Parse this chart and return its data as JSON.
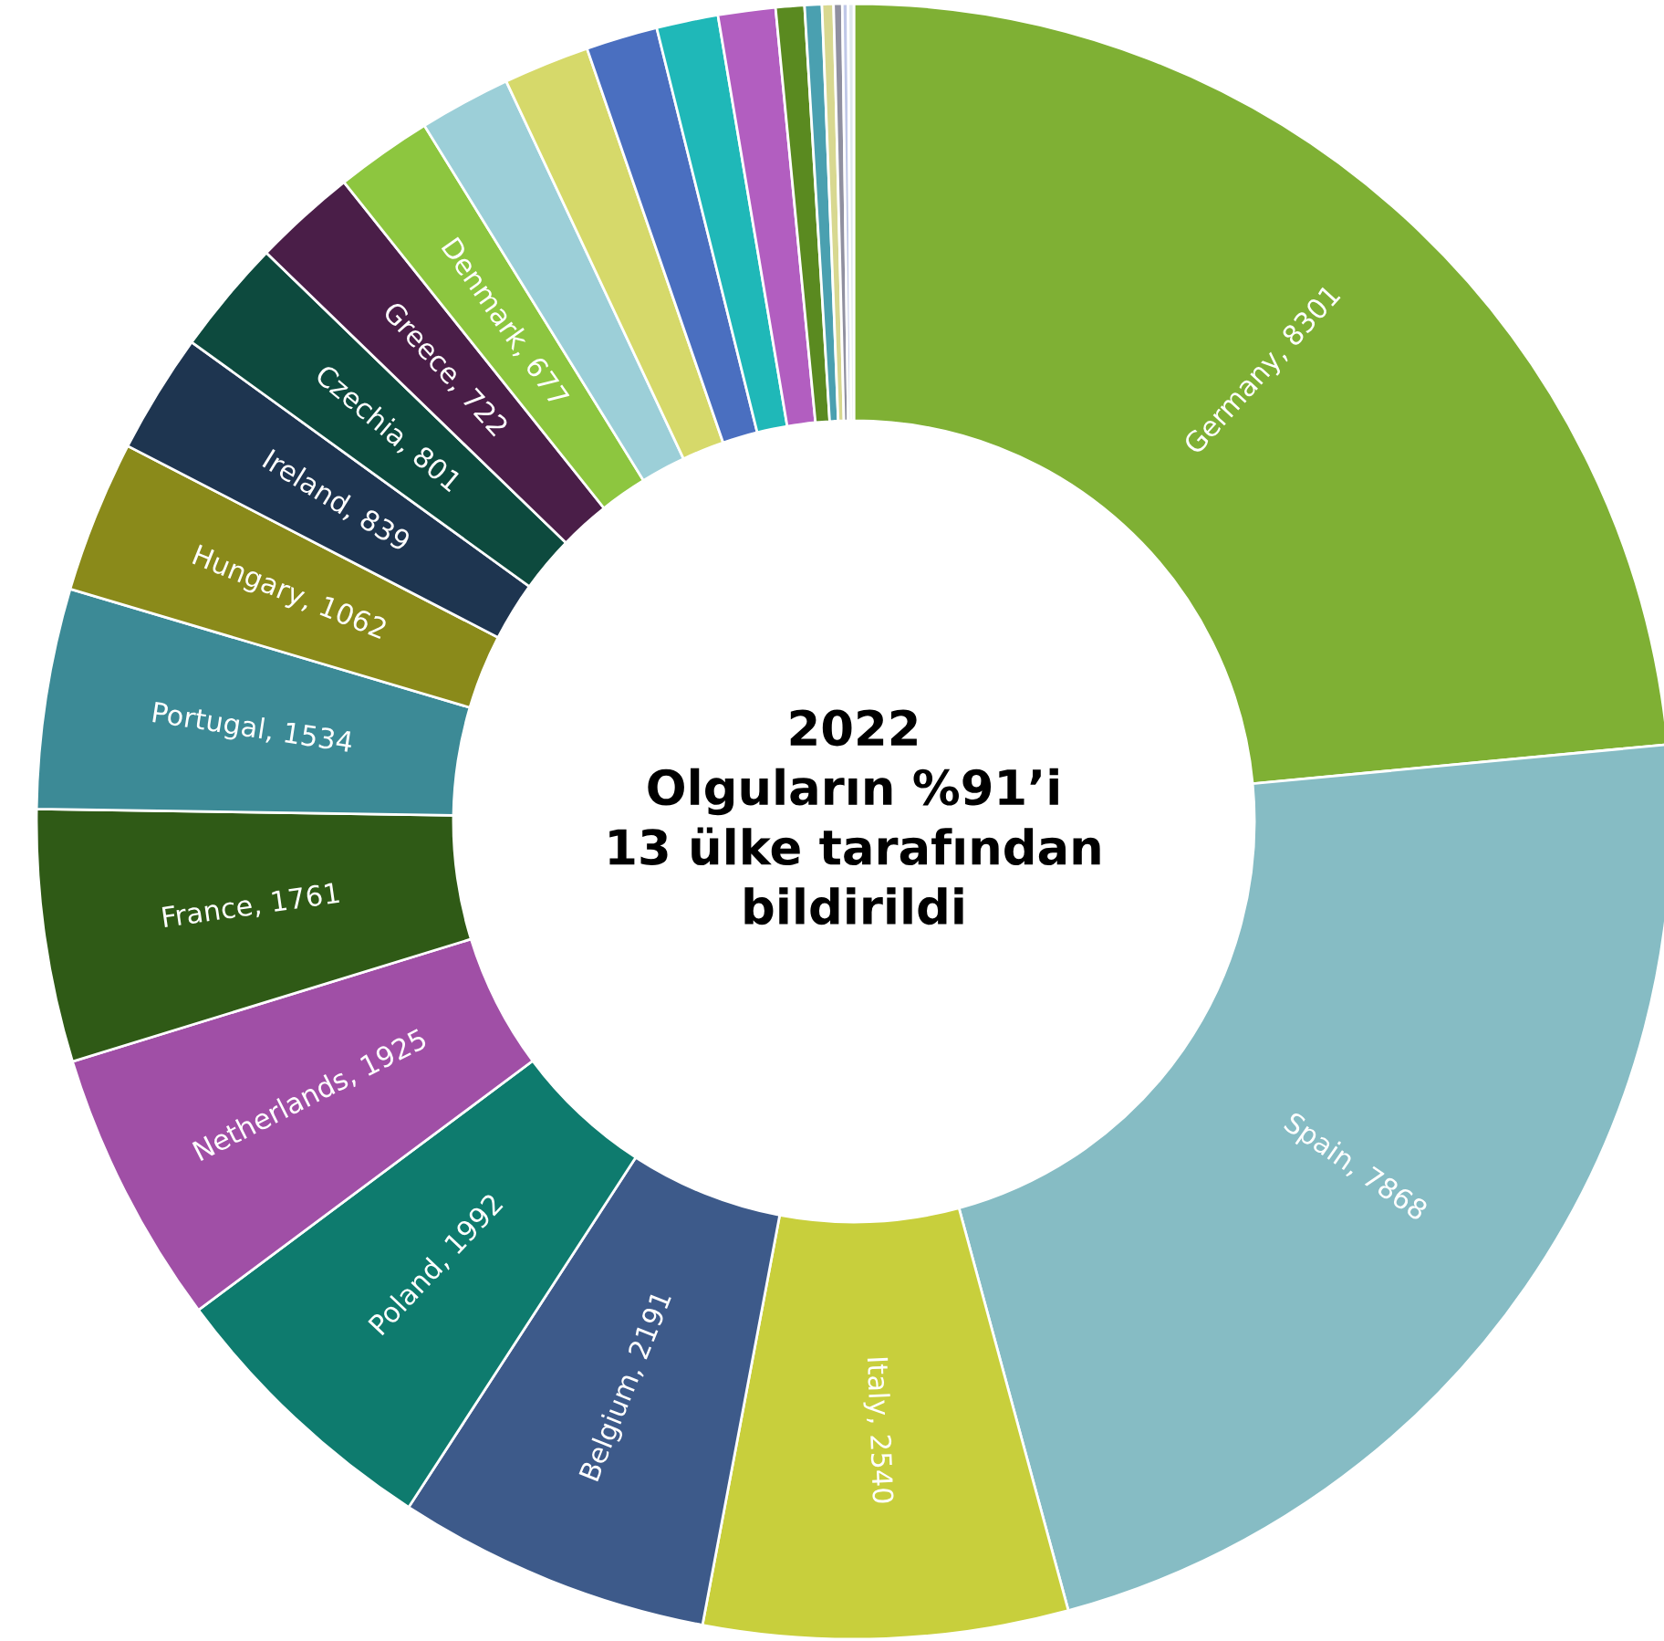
{
  "chart_data": {
    "type": "donut",
    "title": "2022\nOlguların %91’i\n13 ülke tarafından\nbildirildi",
    "categories": [
      "Germany, 8301",
      "Spain, 7868",
      "Italy, 2540",
      "Belgium, 2191",
      "Poland, 1992",
      "Netherlands, 1925",
      "France, 1761",
      "Portugal, 1534",
      "Hungary, 1062",
      "Ireland, 839",
      "Czechia, 801",
      "Greece, 722",
      "Denmark, 677",
      null,
      null,
      null,
      null,
      null,
      null,
      null,
      null,
      null,
      null,
      null
    ],
    "values": [
      8301,
      7868,
      2540,
      2191,
      1992,
      1925,
      1761,
      1534,
      1062,
      839,
      801,
      722,
      677,
      640,
      600,
      500,
      430,
      400,
      200,
      120,
      80,
      60,
      40,
      40
    ],
    "colors": [
      "#7fb034",
      "#86bcc4",
      "#c8cf3c",
      "#3d5a8a",
      "#0e7b6e",
      "#a04fa6",
      "#2f5a16",
      "#3c8a96",
      "#8a8a1a",
      "#1e3550",
      "#0d4a3e",
      "#4a1e48",
      "#8dc63f",
      "#9ccfd8",
      "#d6d96a",
      "#4a6fc0",
      "#1fb8b8",
      "#b25ec0",
      "#5a8a20",
      "#4aa0b0",
      "#d8d890",
      "#9090a0",
      "#c0c8e8",
      "#e0e8ee"
    ],
    "legend": false
  }
}
